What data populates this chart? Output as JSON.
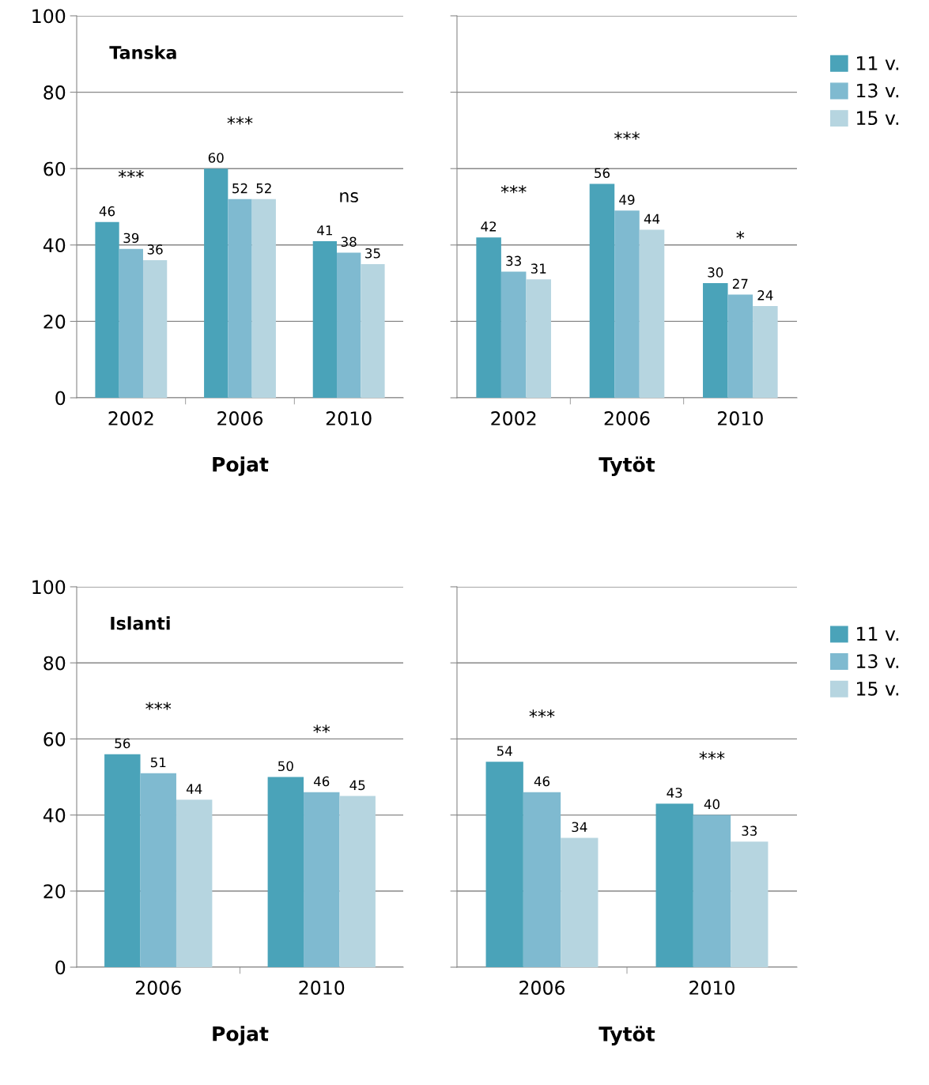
{
  "chart_data": [
    {
      "type": "bar",
      "title": "Tanska",
      "xlabel": "Pojat",
      "categories": [
        "2002",
        "2006",
        "2010"
      ],
      "ylim": [
        0,
        100
      ],
      "yticks": [
        0,
        20,
        40,
        60,
        80,
        100
      ],
      "grid": "y",
      "legend": false,
      "data_labels": true,
      "series": [
        {
          "color": "#4aa3b9",
          "values": [
            46,
            60,
            41
          ]
        },
        {
          "color": "#7fbad0",
          "values": [
            39,
            52,
            38
          ]
        },
        {
          "color": "#b6d5e0",
          "values": [
            36,
            52,
            35
          ]
        }
      ],
      "annotations": [
        "***",
        "***",
        "ns"
      ]
    },
    {
      "type": "bar",
      "xlabel": "Tytöt",
      "categories": [
        "2002",
        "2006",
        "2010"
      ],
      "ylim": [
        0,
        100
      ],
      "yticks": [
        0,
        20,
        40,
        60,
        80,
        100
      ],
      "grid": "y",
      "legend": "right",
      "tick_labels": "x",
      "data_labels": true,
      "series": [
        {
          "name": "11 v.",
          "color": "#4aa3b9",
          "values": [
            42,
            56,
            30
          ]
        },
        {
          "name": "13 v.",
          "color": "#7fbad0",
          "values": [
            33,
            49,
            27
          ]
        },
        {
          "name": "15 v.",
          "color": "#b6d5e0",
          "values": [
            31,
            44,
            24
          ]
        }
      ],
      "annotations": [
        "***",
        "***",
        "*"
      ]
    },
    {
      "type": "bar",
      "title": "Islanti",
      "xlabel": "Pojat",
      "categories": [
        "2006",
        "2010"
      ],
      "ylim": [
        0,
        100
      ],
      "yticks": [
        0,
        20,
        40,
        60,
        80,
        100
      ],
      "grid": "y",
      "legend": false,
      "data_labels": true,
      "series": [
        {
          "color": "#4aa3b9",
          "values": [
            56,
            50
          ]
        },
        {
          "color": "#7fbad0",
          "values": [
            51,
            46
          ]
        },
        {
          "color": "#b6d5e0",
          "values": [
            44,
            45
          ]
        }
      ],
      "annotations": [
        "***",
        "**"
      ]
    },
    {
      "type": "bar",
      "xlabel": "Tytöt",
      "categories": [
        "2006",
        "2010"
      ],
      "ylim": [
        0,
        100
      ],
      "yticks": [
        0,
        20,
        40,
        60,
        80,
        100
      ],
      "grid": "y",
      "legend": "right",
      "tick_labels": "x",
      "data_labels": true,
      "series": [
        {
          "name": "11 v.",
          "color": "#4aa3b9",
          "values": [
            54,
            43
          ]
        },
        {
          "name": "13 v.",
          "color": "#7fbad0",
          "values": [
            46,
            40
          ]
        },
        {
          "name": "15 v.",
          "color": "#b6d5e0",
          "values": [
            34,
            33
          ]
        }
      ],
      "annotations": [
        "***",
        "***"
      ]
    }
  ]
}
